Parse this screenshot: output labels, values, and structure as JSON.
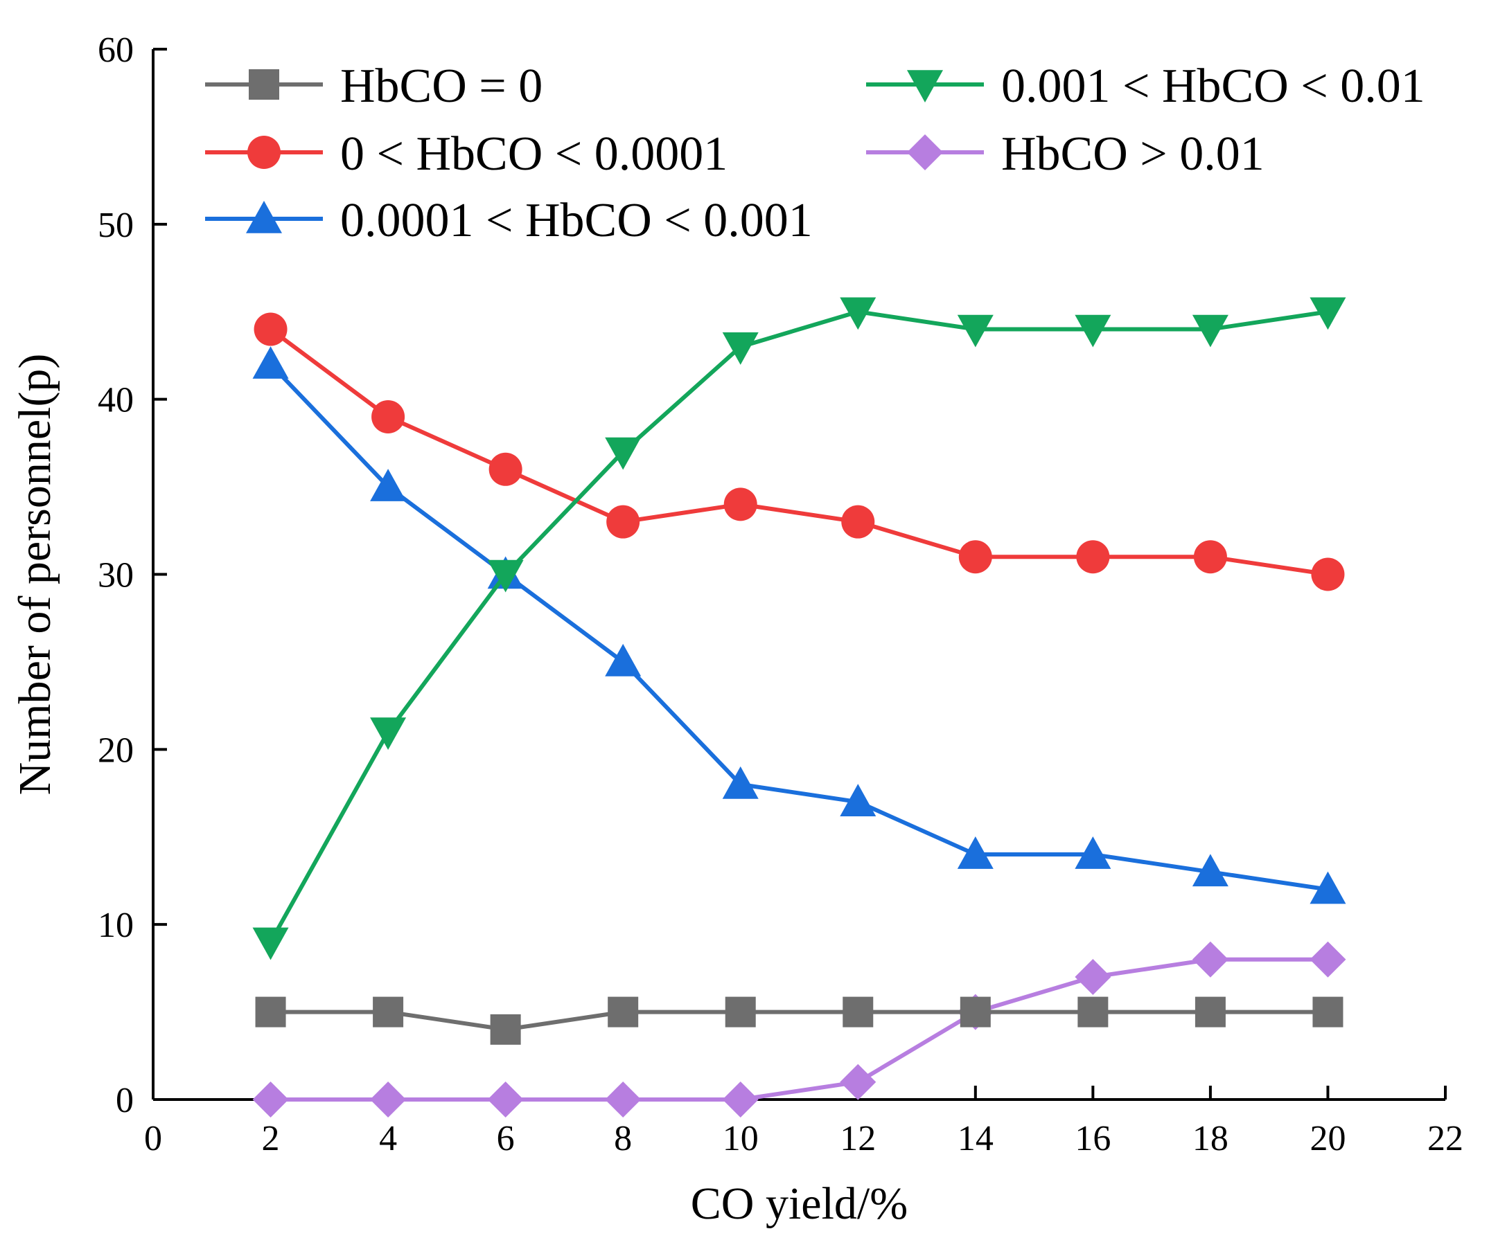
{
  "chart_data": {
    "type": "line",
    "title": "",
    "xlabel": "CO yield/%",
    "ylabel": "Number of personnel(p)",
    "xlim": [
      0,
      22
    ],
    "ylim": [
      0,
      60
    ],
    "xticks": [
      0,
      2,
      4,
      6,
      8,
      10,
      12,
      14,
      16,
      18,
      20,
      22
    ],
    "yticks": [
      0,
      10,
      20,
      30,
      40,
      50,
      60
    ],
    "x": [
      2,
      4,
      6,
      8,
      10,
      12,
      14,
      16,
      18,
      20
    ],
    "legend_position": "top",
    "series": [
      {
        "name": "HbCO = 0",
        "color": "#6e6e6e",
        "marker": "square",
        "values": [
          5,
          5,
          4,
          5,
          5,
          5,
          5,
          5,
          5,
          5
        ]
      },
      {
        "name": "0 < HbCO < 0.0001",
        "color": "#ef3b3b",
        "marker": "circle",
        "values": [
          44,
          39,
          36,
          33,
          34,
          33,
          31,
          31,
          31,
          30
        ]
      },
      {
        "name": "0.0001 < HbCO < 0.001",
        "color": "#1a6fdc",
        "marker": "triangle-up",
        "values": [
          42,
          35,
          30,
          25,
          18,
          17,
          14,
          14,
          13,
          12
        ]
      },
      {
        "name": "0.001 < HbCO < 0.01",
        "color": "#13a65b",
        "marker": "triangle-down",
        "values": [
          9,
          21,
          30,
          37,
          43,
          45,
          44,
          44,
          44,
          45
        ]
      },
      {
        "name": "HbCO > 0.01",
        "color": "#b77ee0",
        "marker": "diamond",
        "values": [
          0,
          0,
          0,
          0,
          0,
          1,
          5,
          7,
          8,
          8
        ]
      }
    ]
  }
}
